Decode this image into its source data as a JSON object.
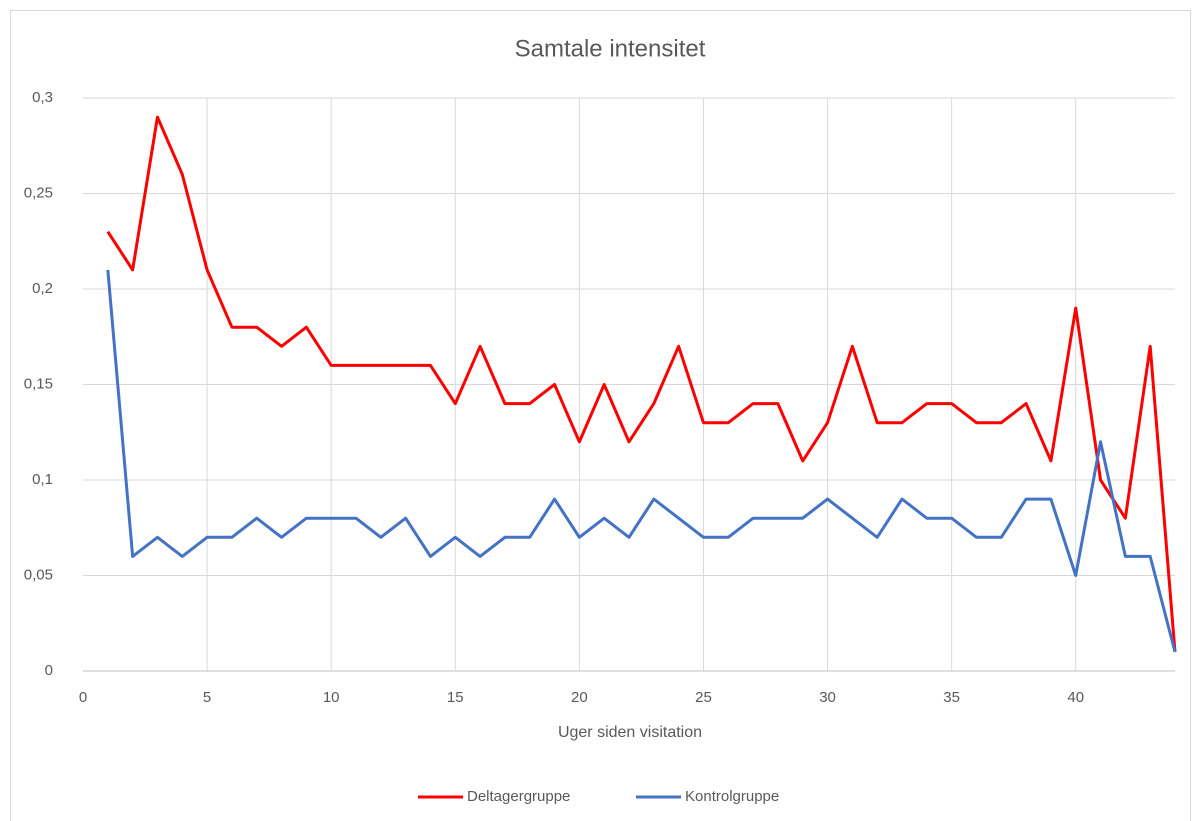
{
  "chart_data": {
    "type": "line",
    "title": "Samtale intensitet",
    "x_label": "Uger siden visitation",
    "x": [
      1,
      2,
      3,
      4,
      5,
      6,
      7,
      8,
      9,
      10,
      11,
      12,
      13,
      14,
      15,
      16,
      17,
      18,
      19,
      20,
      21,
      22,
      23,
      24,
      25,
      26,
      27,
      28,
      29,
      30,
      31,
      32,
      33,
      34,
      35,
      36,
      37,
      38,
      39,
      40,
      41,
      42,
      43,
      44
    ],
    "series": [
      {
        "name": "Deltagergruppe",
        "color": "#ff0000",
        "values": [
          0.23,
          0.21,
          0.29,
          0.26,
          0.21,
          0.18,
          0.18,
          0.17,
          0.18,
          0.16,
          0.16,
          0.16,
          0.16,
          0.16,
          0.14,
          0.17,
          0.14,
          0.14,
          0.15,
          0.12,
          0.15,
          0.12,
          0.14,
          0.17,
          0.13,
          0.13,
          0.14,
          0.14,
          0.11,
          0.13,
          0.17,
          0.13,
          0.13,
          0.14,
          0.14,
          0.13,
          0.13,
          0.14,
          0.11,
          0.19,
          0.1,
          0.08,
          0.17,
          0.01
        ]
      },
      {
        "name": "Kontrolgruppe",
        "color": "#4472c4",
        "values": [
          0.21,
          0.06,
          0.07,
          0.06,
          0.07,
          0.07,
          0.08,
          0.07,
          0.08,
          0.08,
          0.08,
          0.07,
          0.08,
          0.06,
          0.07,
          0.06,
          0.07,
          0.07,
          0.09,
          0.07,
          0.08,
          0.07,
          0.09,
          0.08,
          0.07,
          0.07,
          0.08,
          0.08,
          0.08,
          0.09,
          0.08,
          0.07,
          0.09,
          0.08,
          0.08,
          0.07,
          0.07,
          0.09,
          0.09,
          0.05,
          0.12,
          0.06,
          0.06,
          0.01
        ]
      }
    ],
    "xlim": [
      0,
      44
    ],
    "xticks": [
      0,
      5,
      10,
      15,
      20,
      25,
      30,
      35,
      40
    ],
    "ylim": [
      0,
      0.3
    ],
    "yticks": [
      0,
      {
        "value": 0.05,
        "label": "0,05"
      },
      {
        "value": 0.1,
        "label": "0,1"
      },
      {
        "value": 0.15,
        "label": "0,15"
      },
      {
        "value": 0.2,
        "label": "0,2"
      },
      {
        "value": 0.25,
        "label": "0,25"
      },
      {
        "value": 0.3,
        "label": "0,3"
      }
    ],
    "grid": true,
    "legend": "bottom"
  }
}
